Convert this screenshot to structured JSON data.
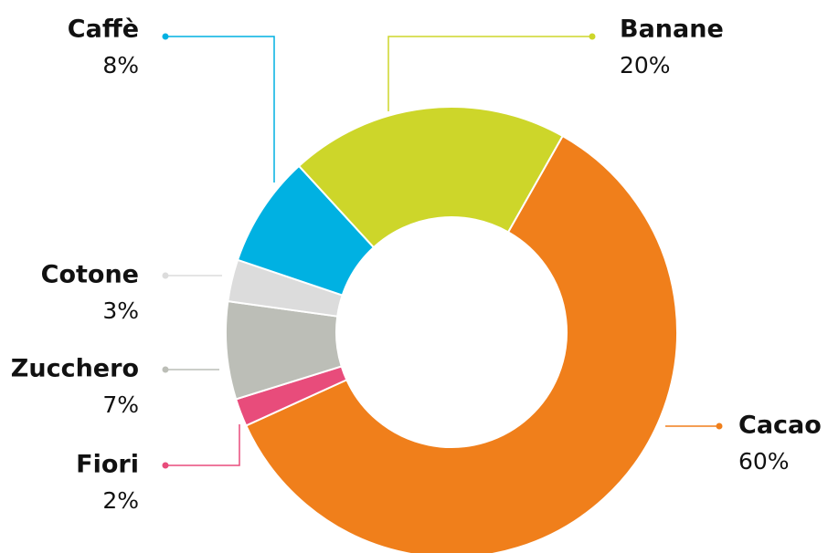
{
  "chart_data": {
    "type": "pie",
    "donut": true,
    "categories": [
      "Cacao",
      "Fiori",
      "Zucchero",
      "Cotone",
      "Caffè",
      "Banane"
    ],
    "values": [
      60,
      2,
      7,
      3,
      8,
      20
    ],
    "value_labels": [
      "60%",
      "2%",
      "7%",
      "3%",
      "8%",
      "20%"
    ],
    "colors": [
      "#f07f1b",
      "#e84c7b",
      "#bcbeb7",
      "#dcdcdc",
      "#00b1e2",
      "#cdd62a"
    ]
  }
}
